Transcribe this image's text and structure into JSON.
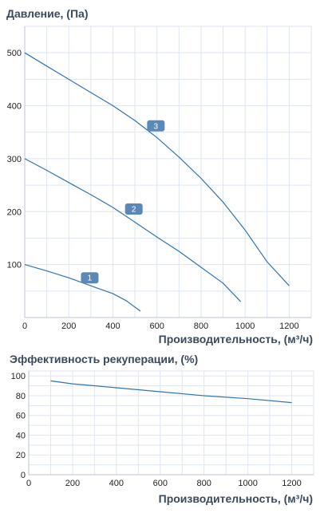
{
  "chart_data": [
    {
      "type": "line",
      "title": "Давление, (Па)",
      "xlabel": "Производительность, (м³/ч)",
      "xlim": [
        0,
        1300
      ],
      "ylim": [
        0,
        550
      ],
      "xticks": [
        0,
        200,
        400,
        600,
        800,
        1000,
        1200
      ],
      "yticks": [
        100,
        200,
        300,
        400,
        500
      ],
      "grid": true,
      "series": [
        {
          "name": "1",
          "x": [
            0,
            100,
            200,
            300,
            400,
            460,
            525
          ],
          "y": [
            100,
            88,
            75,
            60,
            45,
            32,
            12
          ]
        },
        {
          "name": "2",
          "x": [
            0,
            100,
            200,
            300,
            400,
            500,
            600,
            700,
            800,
            900,
            980
          ],
          "y": [
            300,
            278,
            255,
            232,
            208,
            180,
            152,
            125,
            95,
            65,
            30
          ]
        },
        {
          "name": "3",
          "x": [
            0,
            100,
            200,
            300,
            400,
            500,
            600,
            700,
            800,
            900,
            1000,
            1100,
            1200
          ],
          "y": [
            500,
            475,
            450,
            425,
            400,
            372,
            340,
            303,
            263,
            218,
            165,
            105,
            60
          ]
        }
      ],
      "annotations": [
        {
          "text": "1",
          "x": 295,
          "y": 75
        },
        {
          "text": "2",
          "x": 495,
          "y": 205
        },
        {
          "text": "3",
          "x": 595,
          "y": 362
        }
      ]
    },
    {
      "type": "line",
      "title": "Эффективность рекуперации, (%)",
      "xlabel": "Производительность, (м³/ч)",
      "xlim": [
        0,
        1300
      ],
      "ylim": [
        0,
        105
      ],
      "xticks": [
        0,
        200,
        400,
        600,
        800,
        1000,
        1200
      ],
      "yticks": [
        0,
        20,
        40,
        60,
        80,
        100
      ],
      "grid": true,
      "series": [
        {
          "x": [
            100,
            200,
            400,
            600,
            800,
            1000,
            1200
          ],
          "y": [
            95,
            92,
            88,
            84,
            80,
            77,
            73
          ]
        }
      ]
    }
  ]
}
